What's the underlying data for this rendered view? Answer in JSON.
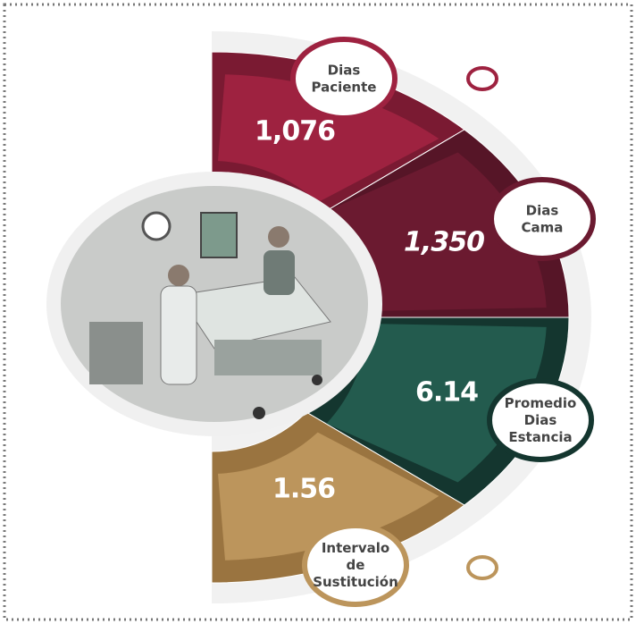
{
  "segments": [
    {
      "label": [
        "Dias",
        "Paciente"
      ],
      "value": "1,076"
    },
    {
      "label": [
        "Dias",
        "Cama"
      ],
      "value": "1,350"
    },
    {
      "label": [
        "Promedio",
        "Dias",
        "Estancia"
      ],
      "value": "6.14"
    },
    {
      "label": [
        "Intervalo",
        "de",
        "Sustitución"
      ],
      "value": "1.56"
    }
  ]
}
